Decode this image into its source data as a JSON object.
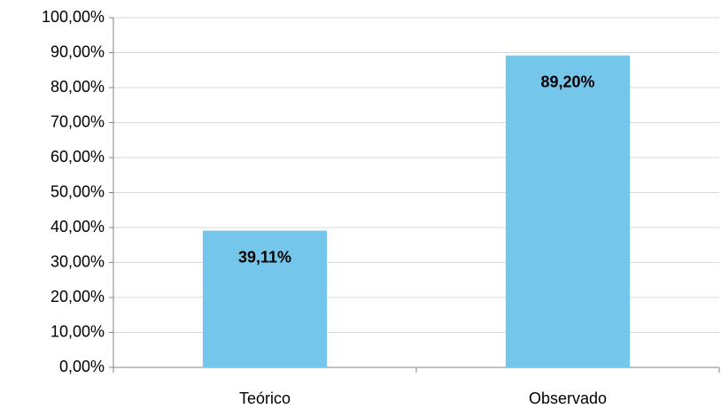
{
  "chart_data": {
    "type": "bar",
    "categories": [
      "Teórico",
      "Observado"
    ],
    "values": [
      39.11,
      89.2
    ],
    "value_labels": [
      "39,11%",
      "89,20%"
    ],
    "color": "#75c6eb",
    "ylim": [
      0,
      100
    ],
    "yticks": [
      {
        "value": 0,
        "label": "0,00%"
      },
      {
        "value": 10,
        "label": "10,00%"
      },
      {
        "value": 20,
        "label": "20,00%"
      },
      {
        "value": 30,
        "label": "30,00%"
      },
      {
        "value": 40,
        "label": "40,00%"
      },
      {
        "value": 50,
        "label": "50,00%"
      },
      {
        "value": 60,
        "label": "60,00%"
      },
      {
        "value": 70,
        "label": "70,00%"
      },
      {
        "value": 80,
        "label": "80,00%"
      },
      {
        "value": 90,
        "label": "90,00%"
      },
      {
        "value": 100,
        "label": "100,00%"
      }
    ],
    "grid": true
  }
}
